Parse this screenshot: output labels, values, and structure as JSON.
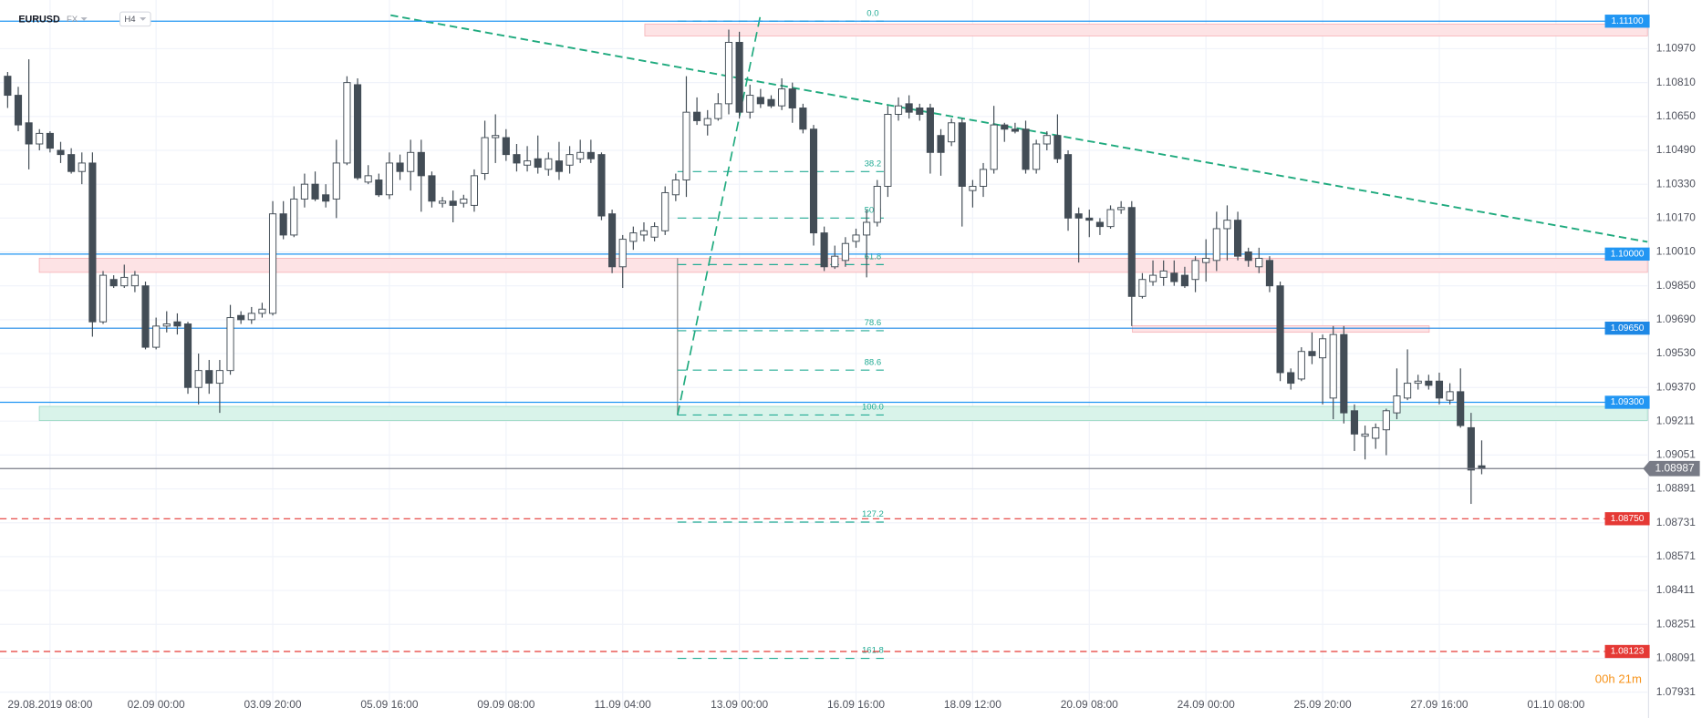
{
  "header": {
    "symbol": "EURUSD",
    "market": "FX",
    "timeframe": "H4",
    "countdown": "00h 21m"
  },
  "chart_data": {
    "type": "candlestick",
    "categories": [
      null,
      null,
      null,
      null,
      "29.08.2019 08:00",
      null,
      null,
      null,
      null,
      null,
      null,
      null,
      null,
      null,
      "02.09 00:00",
      null,
      null,
      null,
      null,
      null,
      null,
      null,
      null,
      null,
      null,
      "03.09 20:00",
      null,
      null,
      null,
      null,
      null,
      null,
      null,
      null,
      null,
      null,
      "05.09 16:00",
      null,
      null,
      null,
      null,
      null,
      null,
      null,
      null,
      null,
      null,
      "09.09 08:00",
      null,
      null,
      null,
      null,
      null,
      null,
      null,
      null,
      null,
      null,
      "11.09 04:00",
      null,
      null,
      null,
      null,
      null,
      null,
      null,
      null,
      null,
      null,
      "13.09 00:00",
      null,
      null,
      null,
      null,
      null,
      null,
      null,
      null,
      null,
      null,
      "16.09 16:00",
      null,
      null,
      null,
      null,
      null,
      null,
      null,
      null,
      null,
      null,
      "18.09 12:00",
      null,
      null,
      null,
      null,
      null,
      null,
      null,
      null,
      null,
      null,
      "20.09 08:00",
      null,
      null,
      null,
      null,
      null,
      null,
      null,
      null,
      null,
      null,
      "24.09 00:00",
      null,
      null,
      null,
      null,
      null,
      null,
      null,
      null,
      null,
      null,
      "25.09 20:00",
      null,
      null,
      null,
      null,
      null,
      null,
      null,
      null,
      null,
      null,
      "27.09 16:00",
      null,
      null,
      null,
      null,
      null,
      null,
      null,
      null,
      null,
      null,
      "01.10 08:00"
    ],
    "open": [
      1.1084,
      1.1075,
      1.1062,
      1.1052,
      1.1057,
      1.1049,
      1.1047,
      1.1039,
      1.1043,
      1.0968,
      1.0988,
      1.0985,
      1.0985,
      1.0985,
      1.0956,
      1.0966,
      1.0968,
      1.0967,
      1.0937,
      1.0945,
      1.0939,
      1.0945,
      1.0971,
      1.0969,
      1.0972,
      1.0972,
      1.1019,
      1.1009,
      1.1026,
      1.1033,
      1.1028,
      1.1026,
      1.1043,
      1.108,
      1.1034,
      1.1035,
      1.1028,
      1.1043,
      1.1039,
      1.1048,
      1.1037,
      1.1024,
      1.1025,
      1.1024,
      1.1023,
      1.1038,
      1.1055,
      1.1055,
      1.1047,
      1.1042,
      1.1045,
      1.104,
      1.1044,
      1.1042,
      1.1045,
      1.1048,
      1.1047,
      1.1019,
      1.0994,
      1.1006,
      1.1009,
      1.1008,
      1.1011,
      1.1028,
      1.1035,
      1.1067,
      1.1061,
      1.1064,
      1.1071,
      1.11,
      1.1067,
      1.1074,
      1.1073,
      1.107,
      1.1078,
      1.1069,
      1.1059,
      1.101,
      1.0994,
      1.0997,
      1.1006,
      1.1009,
      1.1015,
      1.1032,
      1.1066,
      1.1071,
      1.1069,
      1.1069,
      1.1056,
      1.1053,
      1.1062,
      1.103,
      1.1032,
      1.104,
      1.1061,
      1.1059,
      1.1059,
      1.104,
      1.1052,
      1.1056,
      1.1047,
      1.1019,
      1.1017,
      1.1015,
      1.1013,
      1.1021,
      1.1022,
      1.098,
      1.0987,
      1.0989,
      1.0991,
      1.099,
      1.0988,
      1.0996,
      1.0997,
      1.1012,
      1.1016,
      1.1001,
      1.0994,
      1.0997,
      1.0985,
      1.0944,
      1.0941,
      1.0954,
      1.0951,
      1.0932,
      1.0962,
      1.0926,
      1.0914,
      1.0913,
      1.0917,
      1.0925,
      1.0932,
      1.0939,
      1.094,
      1.094,
      1.0931,
      1.0935,
      1.0918,
      1.09,
      null,
      null,
      null,
      null,
      null,
      null,
      null
    ],
    "high": [
      1.1086,
      1.1079,
      1.1092,
      1.1059,
      1.1058,
      1.1053,
      1.105,
      1.1048,
      1.1048,
      1.0992,
      1.099,
      1.0995,
      1.0992,
      1.0987,
      1.097,
      1.0973,
      1.0972,
      1.0968,
      1.0953,
      1.095,
      1.095,
      1.0976,
      1.0973,
      1.0975,
      1.0977,
      1.1025,
      1.1025,
      1.1032,
      1.1038,
      1.1039,
      1.1033,
      1.1054,
      1.1084,
      1.1083,
      1.1042,
      1.1038,
      1.1048,
      1.1047,
      1.1054,
      1.1054,
      1.1039,
      1.1027,
      1.103,
      1.1028,
      1.104,
      1.1063,
      1.1066,
      1.1059,
      1.1052,
      1.1051,
      1.1056,
      1.1048,
      1.1053,
      1.1051,
      1.1054,
      1.1054,
      1.1048,
      1.1021,
      1.1009,
      1.1013,
      1.1015,
      1.1015,
      1.1032,
      1.1038,
      1.1084,
      1.1074,
      1.1068,
      1.1076,
      1.1106,
      1.1105,
      1.108,
      1.1078,
      1.1075,
      1.1083,
      1.1081,
      1.1071,
      1.1061,
      1.1013,
      1.1004,
      1.1008,
      1.1012,
      1.1021,
      1.1035,
      1.107,
      1.1074,
      1.1075,
      1.1071,
      1.1071,
      1.1059,
      1.1064,
      1.1064,
      1.1035,
      1.1043,
      1.107,
      1.1062,
      1.1062,
      1.1063,
      1.1054,
      1.1058,
      1.1066,
      1.1049,
      1.1022,
      1.1021,
      1.1017,
      1.1023,
      1.1025,
      1.1025,
      1.0991,
      1.0997,
      1.0997,
      1.0997,
      1.0994,
      1.0999,
      1.1007,
      1.102,
      1.1023,
      1.102,
      1.1003,
      1.1003,
      1.0999,
      1.0987,
      1.0946,
      1.0956,
      1.0963,
      1.0962,
      1.0966,
      1.0966,
      1.0929,
      1.0919,
      1.092,
      1.0927,
      1.0946,
      1.0955,
      1.0943,
      1.0943,
      1.0944,
      1.0939,
      1.0946,
      1.0925,
      1.0912,
      null,
      null,
      null,
      null,
      null,
      null,
      null
    ],
    "low": [
      1.1069,
      1.1058,
      1.104,
      1.1049,
      1.1048,
      1.1043,
      1.1038,
      1.1033,
      1.0961,
      1.0967,
      1.0984,
      1.0984,
      1.0982,
      1.0955,
      1.0955,
      1.0963,
      1.0962,
      1.0934,
      1.0929,
      1.0934,
      1.0925,
      1.0943,
      1.0967,
      1.0967,
      1.097,
      1.0971,
      1.1007,
      1.1008,
      1.1022,
      1.1025,
      1.1022,
      1.1017,
      1.1042,
      1.1035,
      1.1033,
      1.1027,
      1.1026,
      1.1035,
      1.103,
      1.102,
      1.1022,
      1.1022,
      1.1015,
      1.1022,
      1.102,
      1.1035,
      1.1043,
      1.1044,
      1.1039,
      1.1039,
      1.1038,
      1.1037,
      1.1035,
      1.1038,
      1.1043,
      1.1043,
      1.1016,
      1.0991,
      1.0984,
      1.1002,
      1.1006,
      1.1006,
      1.1009,
      1.1025,
      1.1027,
      1.1061,
      1.1056,
      1.1063,
      1.1066,
      1.1064,
      1.1064,
      1.1069,
      1.1069,
      1.1068,
      1.1062,
      1.1057,
      1.1004,
      1.0992,
      1.0993,
      1.0994,
      1.1003,
      1.0989,
      1.1013,
      1.1027,
      1.1063,
      1.1064,
      1.1063,
      1.1038,
      1.1037,
      1.1051,
      1.1013,
      1.1022,
      1.1027,
      1.1038,
      1.1053,
      1.1057,
      1.1038,
      1.1038,
      1.1049,
      1.1043,
      1.1011,
      1.0996,
      1.1008,
      1.1009,
      1.1012,
      1.1019,
      1.0966,
      1.0979,
      1.0985,
      1.0985,
      1.0985,
      1.0984,
      1.0982,
      1.0987,
      1.0992,
      1.0997,
      1.0997,
      1.0994,
      1.0991,
      1.0982,
      1.094,
      1.0936,
      1.094,
      1.0948,
      1.0929,
      1.0922,
      1.092,
      1.0907,
      1.0903,
      1.0908,
      1.0905,
      1.0922,
      1.0931,
      1.0936,
      1.0936,
      1.0929,
      1.0929,
      1.0918,
      1.0882,
      1.0896,
      null,
      null,
      null,
      null,
      null,
      null,
      null
    ],
    "close": [
      1.1075,
      1.1061,
      1.1052,
      1.1057,
      1.105,
      1.1047,
      1.1039,
      1.1043,
      1.0968,
      1.099,
      1.0985,
      1.0989,
      1.099,
      1.0956,
      1.0966,
      1.0967,
      1.0966,
      1.0937,
      1.0945,
      1.0939,
      1.0945,
      1.097,
      1.0969,
      1.0972,
      1.0974,
      1.1019,
      1.1009,
      1.1026,
      1.1033,
      1.1026,
      1.1025,
      1.1043,
      1.1081,
      1.1036,
      1.1037,
      1.1028,
      1.1043,
      1.1039,
      1.1048,
      1.1037,
      1.1025,
      1.1025,
      1.1023,
      1.1026,
      1.1037,
      1.1055,
      1.1056,
      1.1047,
      1.1043,
      1.1044,
      1.1041,
      1.1045,
      1.1039,
      1.1047,
      1.1048,
      1.1045,
      1.1018,
      1.0994,
      1.1007,
      1.101,
      1.1011,
      1.1013,
      1.1029,
      1.1035,
      1.1067,
      1.1063,
      1.1064,
      1.1071,
      1.11,
      1.1067,
      1.1075,
      1.1071,
      1.107,
      1.1078,
      1.1069,
      1.1059,
      1.101,
      1.0994,
      1.0999,
      1.1005,
      1.1009,
      1.1015,
      1.1032,
      1.1066,
      1.107,
      1.1067,
      1.1066,
      1.1048,
      1.1048,
      1.1062,
      1.1032,
      1.1032,
      1.104,
      1.1061,
      1.1059,
      1.1058,
      1.104,
      1.1052,
      1.1056,
      1.1045,
      1.1017,
      1.1017,
      1.1016,
      1.1013,
      1.1021,
      1.1022,
      1.098,
      1.0988,
      1.099,
      1.0992,
      1.0987,
      1.0985,
      1.0997,
      1.0998,
      1.1012,
      1.1016,
      1.0999,
      1.0997,
      1.0998,
      1.0985,
      1.0944,
      1.0939,
      1.0954,
      1.0952,
      1.096,
      1.0962,
      1.0925,
      1.0915,
      1.0915,
      1.0918,
      1.0926,
      1.0933,
      1.0939,
      1.094,
      1.0938,
      1.0932,
      1.0935,
      1.0919,
      1.0898,
      1.08987,
      null,
      null,
      null,
      null,
      null,
      null,
      null
    ],
    "up_color": "#ffffff",
    "down_color": "#434d56",
    "wick_color": "#434d56",
    "ylim": [
      1.0785,
      1.112
    ],
    "yticks": [
      {
        "value": 1.1097,
        "label": "1.10970"
      },
      {
        "value": 1.1081,
        "label": "1.10810"
      },
      {
        "value": 1.1065,
        "label": "1.10650"
      },
      {
        "value": 1.1049,
        "label": "1.10490"
      },
      {
        "value": 1.1033,
        "label": "1.10330"
      },
      {
        "value": 1.1017,
        "label": "1.10170"
      },
      {
        "value": 1.1001,
        "label": "1.10010"
      },
      {
        "value": 1.0985,
        "label": "1.09850"
      },
      {
        "value": 1.0969,
        "label": "1.09690"
      },
      {
        "value": 1.0953,
        "label": "1.09530"
      },
      {
        "value": 1.0937,
        "label": "1.09370"
      },
      1.09211,
      1.09051,
      1.08891,
      1.08731,
      1.08571,
      1.08411,
      1.08251,
      1.08091,
      1.07931
    ],
    "grid": true,
    "levels": [
      {
        "value": 1.111,
        "label": "1.11100",
        "color": "#2196f3",
        "dashed": false
      },
      {
        "value": 1.1,
        "label": "1.10000",
        "color": "#2196f3",
        "dashed": false
      },
      {
        "value": 1.0965,
        "label": "1.09650",
        "color": "#1e88e5",
        "dashed": false
      },
      {
        "value": 1.093,
        "label": "1.09300",
        "color": "#2196f3",
        "dashed": false
      },
      {
        "value": 1.0875,
        "label": "1.08750",
        "color": "#e53935",
        "dashed": true
      },
      {
        "value": 1.08123,
        "color": "#e53935",
        "dashed": true
      }
    ],
    "last_price": {
      "value": 1.08987,
      "color": "#787b86"
    },
    "fibonacci": {
      "high": 1.111,
      "low": 1.0924,
      "color": "#22ab94",
      "levels": [
        {
          "value": 0,
          "label": "0.0"
        },
        38.2,
        {
          "value": 50,
          "label": "50.0"
        },
        61.8,
        78.6,
        88.6,
        {
          "value": 100,
          "label": "100.0"
        },
        127.2,
        161.8
      ]
    }
  }
}
